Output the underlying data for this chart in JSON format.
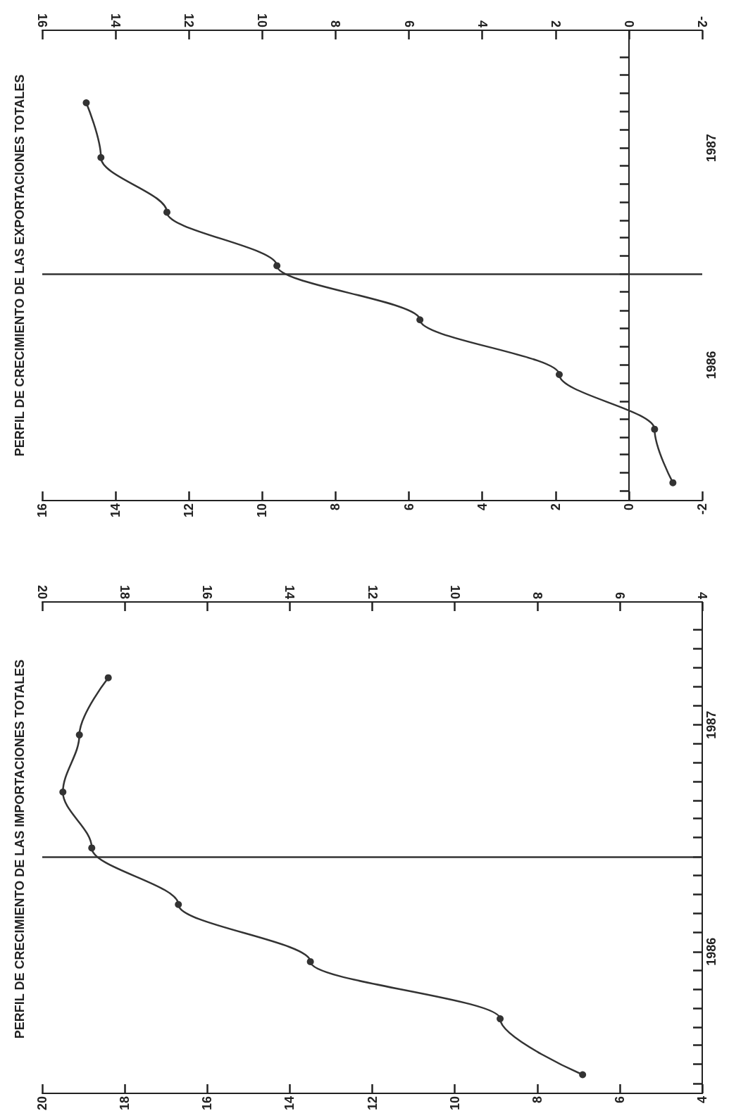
{
  "chart_data": [
    {
      "type": "line",
      "orientation": "horizontal",
      "title": "PERFIL DE CRECIMIENTO DE LAS EXPORTACIONES TOTALES",
      "x": [
        "1985-12-15",
        "1986-03-15",
        "1986-06-15",
        "1986-09-15",
        "1986-12-15",
        "1987-03-15",
        "1987-06-15",
        "1987-09-15"
      ],
      "series": [
        {
          "color": "#333333",
          "values": [
            -1.2,
            -0.7,
            1.9,
            5.7,
            9.6,
            12.6,
            14.4,
            14.8
          ]
        }
      ],
      "marker": "circle",
      "line_style": "solid",
      "ylim": [
        "1985-11-15",
        "1988-01-15"
      ],
      "yticks": [
        {
          "value": "1985-12-01",
          "label": null
        },
        {
          "value": "1986-01-01",
          "label": null
        },
        {
          "value": "1986-02-01",
          "label": null
        },
        {
          "value": "1986-03-01",
          "label": null
        },
        {
          "value": "1986-04-01",
          "label": null
        },
        {
          "value": "1986-05-01",
          "label": null
        },
        {
          "value": "1986-06-01",
          "label": null
        },
        {
          "value": "1986-07-01",
          "label": "1986"
        },
        {
          "value": "1986-08-01",
          "label": null
        },
        {
          "value": "1986-09-01",
          "label": null
        },
        {
          "value": "1986-10-01",
          "label": null
        },
        {
          "value": "1986-11-01",
          "label": null
        },
        {
          "value": "1986-12-01",
          "label": null
        },
        {
          "value": "1987-01-01",
          "label": null
        },
        {
          "value": "1987-02-01",
          "label": null
        },
        {
          "value": "1987-03-01",
          "label": null
        },
        {
          "value": "1987-04-01",
          "label": null
        },
        {
          "value": "1987-05-01",
          "label": null
        },
        {
          "value": "1987-06-01",
          "label": null
        },
        {
          "value": "1987-07-01",
          "label": "1987"
        },
        {
          "value": "1987-08-01",
          "label": null
        },
        {
          "value": "1987-09-01",
          "label": null
        },
        {
          "value": "1987-10-01",
          "label": null
        },
        {
          "value": "1987-11-01",
          "label": null
        },
        {
          "value": "1987-12-01",
          "label": null
        }
      ],
      "xlim": [
        16,
        -2
      ],
      "xticks": [
        16,
        14,
        12,
        10,
        8,
        6,
        4,
        2,
        0,
        -2
      ],
      "x2lim": [
        16,
        -2
      ],
      "x2ticks": [
        16,
        14,
        12,
        10,
        8,
        6,
        4,
        2,
        0,
        -2
      ],
      "ref_lines": [
        {
          "axis": "y",
          "value": "1986-12-01",
          "color": "#333333"
        }
      ]
    },
    {
      "type": "line",
      "orientation": "horizontal",
      "title": "PERFIL DE CRECIMIENTO DE LAS IMPORTACIONES TOTALES",
      "x": [
        "1985-12-15",
        "1986-03-15",
        "1986-06-15",
        "1986-09-15",
        "1986-12-15",
        "1987-03-15",
        "1987-06-15",
        "1987-09-15"
      ],
      "series": [
        {
          "color": "#333333",
          "values": [
            6.9,
            8.9,
            13.5,
            16.7,
            18.8,
            19.5,
            19.1,
            18.4
          ]
        }
      ],
      "marker": "circle",
      "line_style": "solid",
      "ylim": [
        "1985-11-15",
        "1988-01-15"
      ],
      "yticks": [
        {
          "value": "1985-12-01",
          "label": null
        },
        {
          "value": "1986-01-01",
          "label": null
        },
        {
          "value": "1986-02-01",
          "label": null
        },
        {
          "value": "1986-03-01",
          "label": null
        },
        {
          "value": "1986-04-01",
          "label": null
        },
        {
          "value": "1986-05-01",
          "label": null
        },
        {
          "value": "1986-06-01",
          "label": null
        },
        {
          "value": "1986-07-01",
          "label": "1986"
        },
        {
          "value": "1986-08-01",
          "label": null
        },
        {
          "value": "1986-09-01",
          "label": null
        },
        {
          "value": "1986-10-01",
          "label": null
        },
        {
          "value": "1986-11-01",
          "label": null
        },
        {
          "value": "1986-12-01",
          "label": null
        },
        {
          "value": "1987-01-01",
          "label": null
        },
        {
          "value": "1987-02-01",
          "label": null
        },
        {
          "value": "1987-03-01",
          "label": null
        },
        {
          "value": "1987-04-01",
          "label": null
        },
        {
          "value": "1987-05-01",
          "label": null
        },
        {
          "value": "1987-06-01",
          "label": null
        },
        {
          "value": "1987-07-01",
          "label": "1987"
        },
        {
          "value": "1987-08-01",
          "label": null
        },
        {
          "value": "1987-09-01",
          "label": null
        },
        {
          "value": "1987-10-01",
          "label": null
        },
        {
          "value": "1987-11-01",
          "label": null
        },
        {
          "value": "1987-12-01",
          "label": null
        }
      ],
      "xlim": [
        20,
        4
      ],
      "xticks": [
        20,
        18,
        16,
        14,
        12,
        10,
        8,
        6,
        4
      ],
      "x2lim": [
        20,
        4
      ],
      "x2ticks": [
        20,
        18,
        16,
        14,
        12,
        10,
        8,
        6,
        4
      ],
      "ref_lines": [
        {
          "axis": "y",
          "value": "1986-12-01",
          "color": "#333333"
        }
      ]
    }
  ]
}
